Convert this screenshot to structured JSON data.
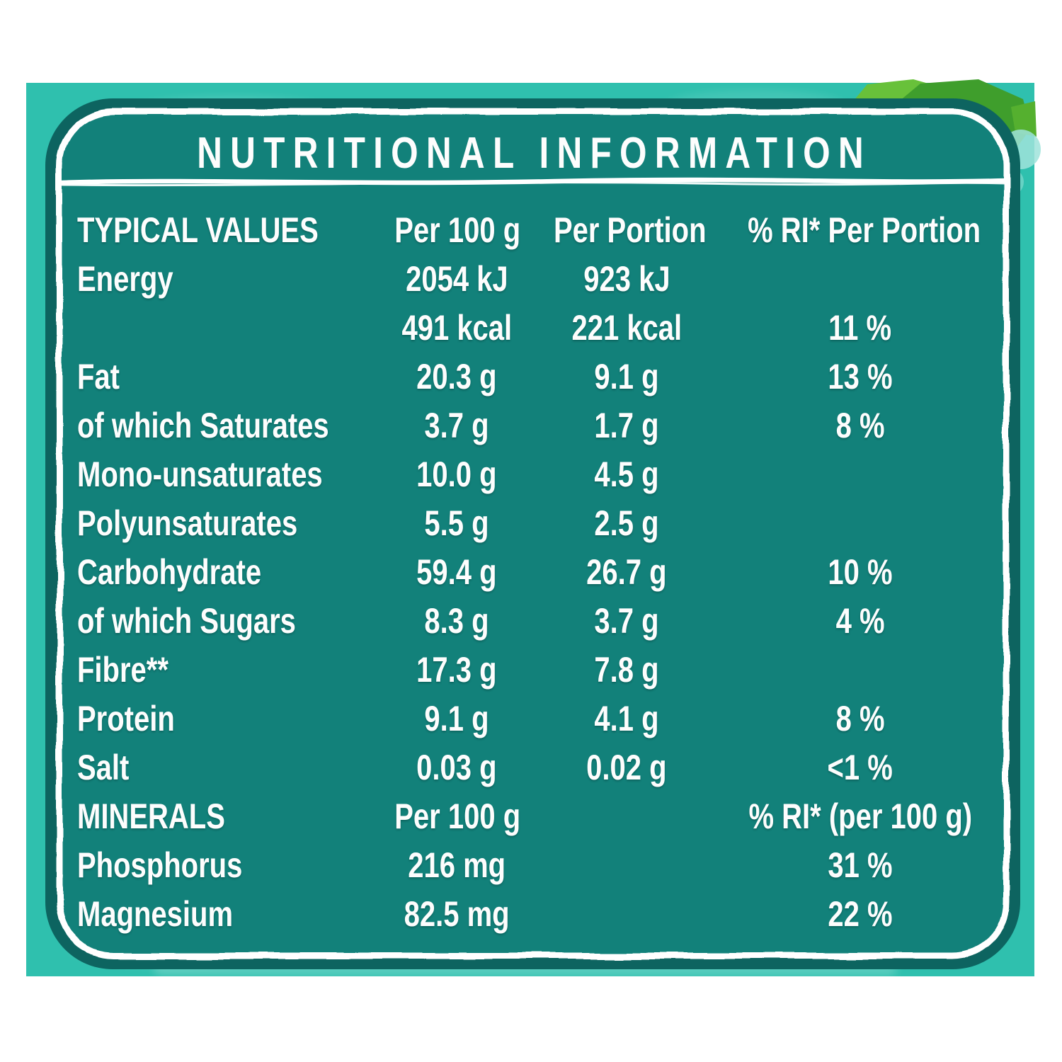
{
  "title": "NUTRITIONAL INFORMATION",
  "colors": {
    "background_teal": "#2fc0ae",
    "panel_teal": "#12817a",
    "panel_dark_ring": "#0d6460",
    "text_white": "#fdfdfd",
    "leaf_green_bright": "#68c13a",
    "leaf_green_dark": "#3f9e2c",
    "leaf_green_mid": "#55b02f",
    "aqua_mottle": "#9fe3da"
  },
  "table": {
    "columns": [
      "TYPICAL VALUES",
      "Per 100 g",
      "Per Portion",
      "% RI* Per Portion"
    ],
    "rows": [
      {
        "label": "Energy",
        "per100": "2054 kJ",
        "portion": "923 kJ",
        "ri": ""
      },
      {
        "label": "",
        "per100": "491 kcal",
        "portion": "221 kcal",
        "ri": "11 %"
      },
      {
        "label": "Fat",
        "per100": "20.3 g",
        "portion": "9.1 g",
        "ri": "13 %"
      },
      {
        "label": "of which Saturates",
        "per100": "3.7 g",
        "portion": "1.7 g",
        "ri": "8 %"
      },
      {
        "label": "Mono-unsaturates",
        "per100": "10.0 g",
        "portion": "4.5 g",
        "ri": ""
      },
      {
        "label": "Polyunsaturates",
        "per100": "5.5 g",
        "portion": "2.5 g",
        "ri": ""
      },
      {
        "label": "Carbohydrate",
        "per100": "59.4 g",
        "portion": "26.7 g",
        "ri": "10 %"
      },
      {
        "label": "of which Sugars",
        "per100": "8.3 g",
        "portion": "3.7 g",
        "ri": "4 %"
      },
      {
        "label": "Fibre**",
        "per100": "17.3 g",
        "portion": "7.8 g",
        "ri": ""
      },
      {
        "label": "Protein",
        "per100": "9.1 g",
        "portion": "4.1 g",
        "ri": "8 %"
      },
      {
        "label": "Salt",
        "per100": "0.03 g",
        "portion": "0.02 g",
        "ri": "<1 %"
      },
      {
        "label": "MINERALS",
        "per100": "Per 100 g",
        "portion": "",
        "ri": "% RI* (per 100 g)"
      },
      {
        "label": "Phosphorus",
        "per100": "216 mg",
        "portion": "",
        "ri": "31 %"
      },
      {
        "label": "Magnesium",
        "per100": "82.5 mg",
        "portion": "",
        "ri": "22 %"
      }
    ]
  }
}
